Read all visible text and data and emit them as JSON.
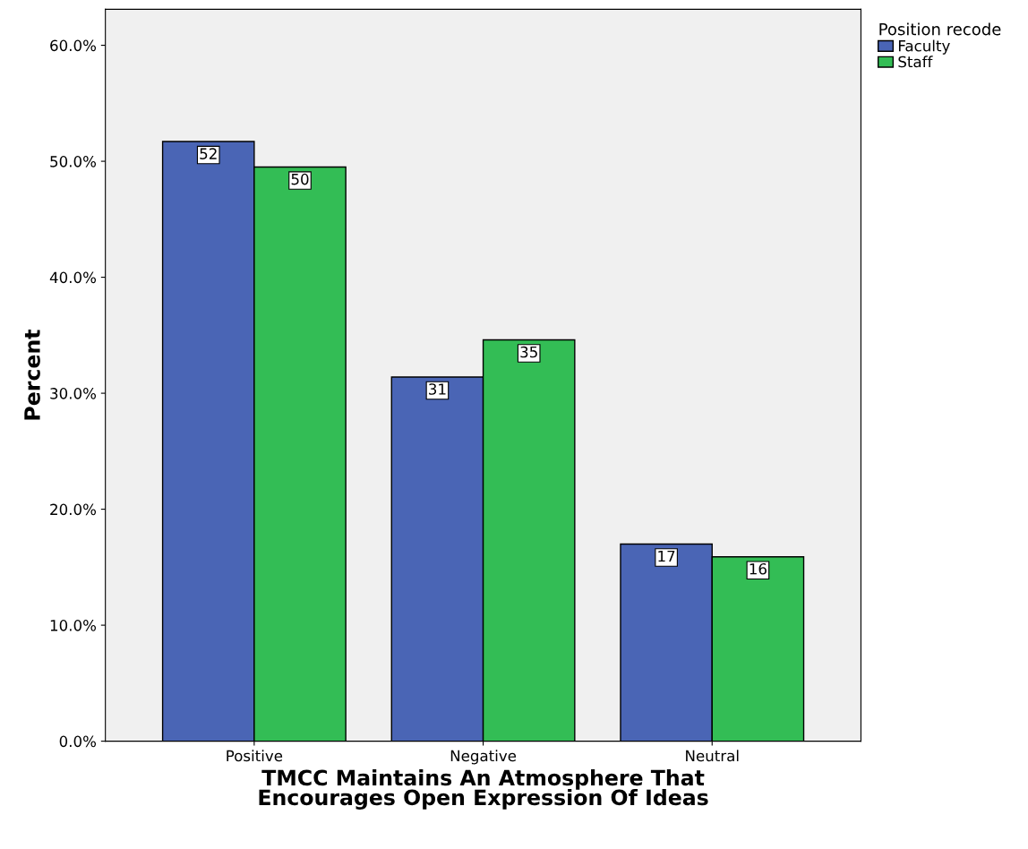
{
  "chart_data": {
    "type": "bar",
    "xlabel": "TMCC Maintains An Atmosphere That\nEncourages Open Expression Of Ideas",
    "ylabel": "Percent",
    "legend_title": "Position recode",
    "categories": [
      "Positive",
      "Negative",
      "Neutral"
    ],
    "series": [
      {
        "name": "Faculty",
        "color": "#4a65b5",
        "values": [
          51.7,
          31.4,
          17.0
        ],
        "value_labels": [
          "52",
          "31",
          "17"
        ]
      },
      {
        "name": "Staff",
        "color": "#33bd55",
        "values": [
          49.5,
          34.6,
          15.9
        ],
        "value_labels": [
          "50",
          "35",
          "16"
        ]
      }
    ],
    "ylim": [
      0,
      63.1
    ],
    "yticks": [
      {
        "value": 0,
        "label": "0.0%"
      },
      {
        "value": 10,
        "label": "10.0%"
      },
      {
        "value": 20,
        "label": "20.0%"
      },
      {
        "value": 30,
        "label": "30.0%"
      },
      {
        "value": 40,
        "label": "40.0%"
      },
      {
        "value": 50,
        "label": "50.0%"
      },
      {
        "value": 60,
        "label": "60.0%"
      }
    ],
    "grid": false,
    "legend": "top right"
  }
}
